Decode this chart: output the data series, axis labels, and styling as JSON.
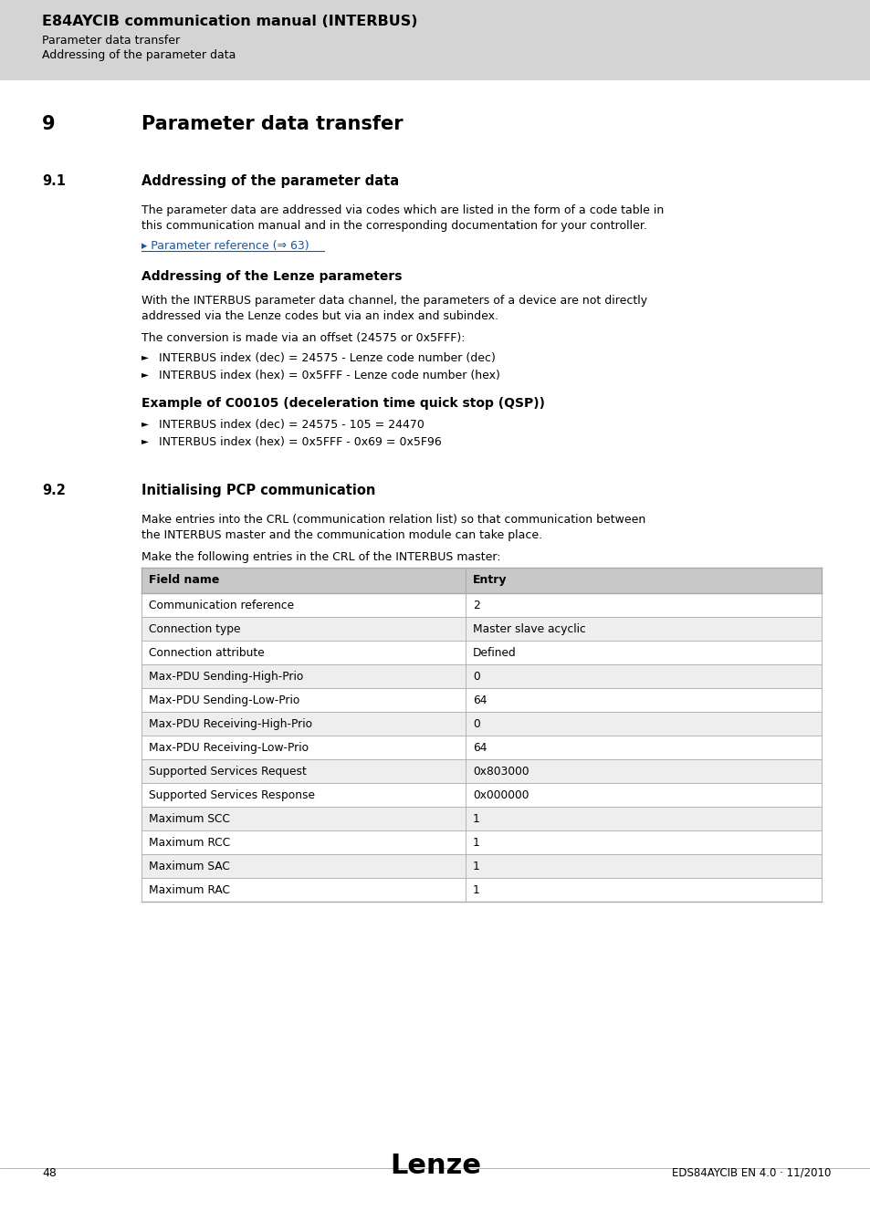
{
  "bg_color": "#ffffff",
  "header_bg": "#d4d4d4",
  "header_title": "E84AYCIB communication manual (INTERBUS)",
  "header_sub1": "Parameter data transfer",
  "header_sub2": "Addressing of the parameter data",
  "section_num": "9",
  "section_title": "Parameter data transfer",
  "sub1_num": "9.1",
  "sub1_title": "Addressing of the parameter data",
  "para1a": "The parameter data are addressed via codes which are listed in the form of a code table in",
  "para1b": "this communication manual and in the corresponding documentation for your controller.",
  "link_text": "▸ Parameter reference (⇒ 63)",
  "sub_heading1": "Addressing of the Lenze parameters",
  "para2a": "With the INTERBUS parameter data channel, the parameters of a device are not directly",
  "para2b": "addressed via the Lenze codes but via an index and subindex.",
  "para3": "The conversion is made via an offset (24575 or 0x5FFF):",
  "bullet1": "INTERBUS index (dec) = 24575 - Lenze code number (dec)",
  "bullet2": "INTERBUS index (hex) = 0x5FFF - Lenze code number (hex)",
  "sub_heading2": "Example of C00105 (deceleration time quick stop (QSP))",
  "bullet3": "INTERBUS index (dec) = 24575 - 105 = 24470",
  "bullet4": "INTERBUS index (hex) = 0x5FFF - 0x69 = 0x5F96",
  "sub2_num": "9.2",
  "sub2_title": "Initialising PCP communication",
  "para4a": "Make entries into the CRL (communication relation list) so that communication between",
  "para4b": "the INTERBUS master and the communication module can take place.",
  "para5": "Make the following entries in the CRL of the INTERBUS master:",
  "table_header": [
    "Field name",
    "Entry"
  ],
  "table_rows": [
    [
      "Communication reference",
      "2"
    ],
    [
      "Connection type",
      "Master slave acyclic"
    ],
    [
      "Connection attribute",
      "Defined"
    ],
    [
      "Max-PDU Sending-High-Prio",
      "0"
    ],
    [
      "Max-PDU Sending-Low-Prio",
      "64"
    ],
    [
      "Max-PDU Receiving-High-Prio",
      "0"
    ],
    [
      "Max-PDU Receiving-Low-Prio",
      "64"
    ],
    [
      "Supported Services Request",
      "0x803000"
    ],
    [
      "Supported Services Response",
      "0x000000"
    ],
    [
      "Maximum SCC",
      "1"
    ],
    [
      "Maximum RCC",
      "1"
    ],
    [
      "Maximum SAC",
      "1"
    ],
    [
      "Maximum RAC",
      "1"
    ]
  ],
  "footer_page": "48",
  "footer_logo": "Lenze",
  "footer_right": "EDS84AYCIB EN 4.0 · 11/2010",
  "table_header_bg": "#c8c8c8",
  "table_row_bg": "#ffffff",
  "table_alt_bg": "#eeeeee",
  "table_border": "#aaaaaa",
  "link_color": "#1a56a0",
  "text_color": "#000000"
}
